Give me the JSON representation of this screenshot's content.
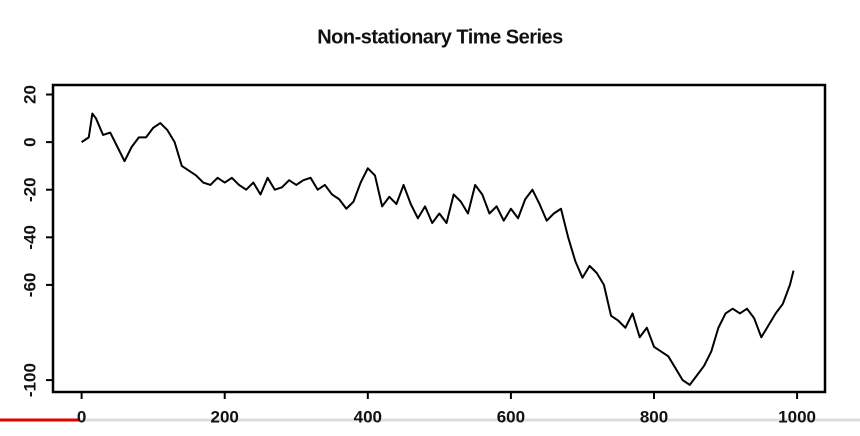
{
  "chart_data": {
    "type": "line",
    "title": "Non-stationary Time Series",
    "x": [
      0,
      10,
      15,
      20,
      30,
      40,
      50,
      60,
      70,
      80,
      90,
      100,
      110,
      120,
      130,
      140,
      150,
      160,
      170,
      180,
      190,
      200,
      210,
      220,
      230,
      240,
      250,
      260,
      270,
      280,
      290,
      300,
      310,
      320,
      330,
      340,
      350,
      360,
      370,
      380,
      390,
      400,
      410,
      420,
      430,
      440,
      450,
      460,
      470,
      480,
      490,
      500,
      510,
      520,
      530,
      540,
      550,
      560,
      570,
      580,
      590,
      600,
      610,
      620,
      630,
      640,
      650,
      660,
      670,
      680,
      690,
      700,
      710,
      720,
      730,
      740,
      750,
      760,
      770,
      780,
      790,
      800,
      810,
      820,
      830,
      840,
      850,
      860,
      870,
      880,
      890,
      900,
      910,
      920,
      930,
      940,
      950,
      960,
      970,
      980,
      990,
      995
    ],
    "values": [
      0,
      2,
      12,
      10,
      3,
      4,
      -2,
      -8,
      -2,
      2,
      2,
      6,
      8,
      5,
      0,
      -10,
      -12,
      -14,
      -17,
      -18,
      -15,
      -17,
      -15,
      -18,
      -20,
      -17,
      -22,
      -15,
      -20,
      -19,
      -16,
      -18,
      -16,
      -15,
      -20,
      -18,
      -22,
      -24,
      -28,
      -25,
      -17,
      -11,
      -14,
      -27,
      -23,
      -26,
      -18,
      -26,
      -32,
      -27,
      -34,
      -30,
      -34,
      -22,
      -25,
      -30,
      -18,
      -22,
      -30,
      -27,
      -33,
      -28,
      -32,
      -24,
      -20,
      -26,
      -33,
      -30,
      -28,
      -40,
      -50,
      -57,
      -52,
      -55,
      -60,
      -73,
      -75,
      -78,
      -72,
      -82,
      -78,
      -86,
      -88,
      -90,
      -95,
      -100,
      -102,
      -98,
      -94,
      -88,
      -78,
      -72,
      -70,
      -72,
      -70,
      -74,
      -82,
      -77,
      -72,
      -68,
      -60,
      -54
    ],
    "color": "#000000",
    "xlim": [
      -40,
      1039
    ],
    "ylim": [
      -105,
      24
    ],
    "xticks": [
      0,
      200,
      400,
      600,
      800,
      1000
    ],
    "yticks": [
      20,
      0,
      -20,
      -40,
      -60,
      -100
    ]
  }
}
